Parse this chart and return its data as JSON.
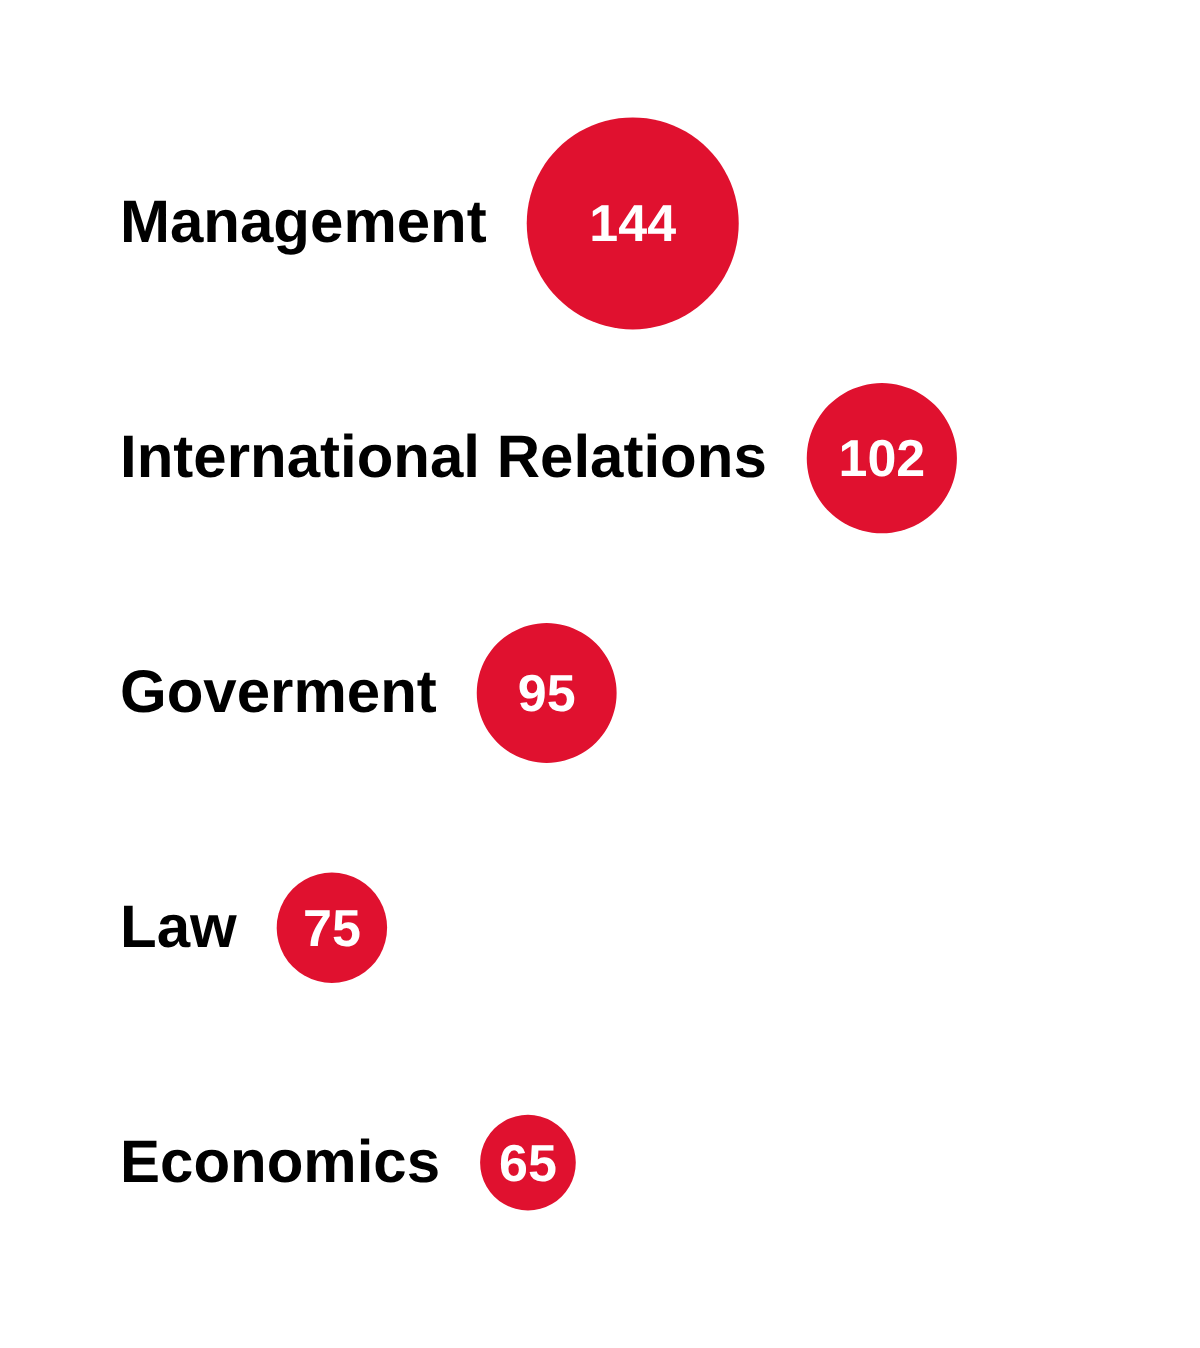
{
  "chart_data": {
    "type": "other",
    "categories": [
      "Management",
      "International Relations",
      "Goverment",
      "Law",
      "Economics"
    ],
    "values": [
      144,
      102,
      95,
      75,
      65
    ],
    "color": "#e0112f",
    "data_labels": true
  }
}
